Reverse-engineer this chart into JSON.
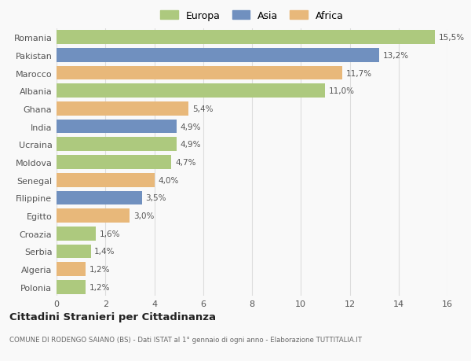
{
  "countries": [
    "Romania",
    "Pakistan",
    "Marocco",
    "Albania",
    "Ghana",
    "India",
    "Ucraina",
    "Moldova",
    "Senegal",
    "Filippine",
    "Egitto",
    "Croazia",
    "Serbia",
    "Algeria",
    "Polonia"
  ],
  "values": [
    15.5,
    13.2,
    11.7,
    11.0,
    5.4,
    4.9,
    4.9,
    4.7,
    4.0,
    3.5,
    3.0,
    1.6,
    1.4,
    1.2,
    1.2
  ],
  "labels": [
    "15,5%",
    "13,2%",
    "11,7%",
    "11,0%",
    "5,4%",
    "4,9%",
    "4,9%",
    "4,7%",
    "4,0%",
    "3,5%",
    "3,0%",
    "1,6%",
    "1,4%",
    "1,2%",
    "1,2%"
  ],
  "continents": [
    "Europa",
    "Asia",
    "Africa",
    "Europa",
    "Africa",
    "Asia",
    "Europa",
    "Europa",
    "Africa",
    "Asia",
    "Africa",
    "Europa",
    "Europa",
    "Africa",
    "Europa"
  ],
  "colors": {
    "Europa": "#adc97e",
    "Asia": "#7090bf",
    "Africa": "#e8b87a"
  },
  "title": "Cittadini Stranieri per Cittadinanza",
  "subtitle": "COMUNE DI RODENGO SAIANO (BS) - Dati ISTAT al 1° gennaio di ogni anno - Elaborazione TUTTITALIA.IT",
  "xlim": [
    0,
    16
  ],
  "xticks": [
    0,
    2,
    4,
    6,
    8,
    10,
    12,
    14,
    16
  ],
  "background_color": "#f9f9f9",
  "grid_color": "#dddddd",
  "bar_height": 0.78
}
